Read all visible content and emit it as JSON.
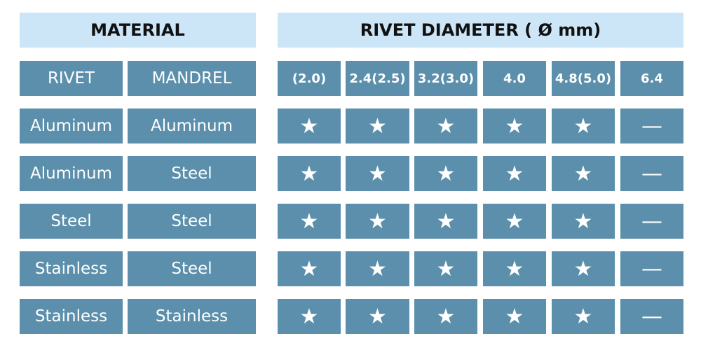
{
  "table": {
    "material_header": "MATERIAL",
    "diameter_header": "RIVET DIAMETER ( Ø mm)",
    "column_headers": [
      "RIVET",
      "MANDREL",
      "(2.0)",
      "2.4(2.5)",
      "3.2(3.0)",
      "4.0",
      "4.8(5.0)",
      "6.4"
    ],
    "rows": [
      [
        "Aluminum",
        "Aluminum",
        "★",
        "★",
        "★",
        "★",
        "★",
        "—"
      ],
      [
        "Aluminum",
        "Steel",
        "★",
        "★",
        "★",
        "★",
        "★",
        "—"
      ],
      [
        "Steel",
        "Steel",
        "★",
        "★",
        "★",
        "★",
        "★",
        "—"
      ],
      [
        "Stainless",
        "Steel",
        "★",
        "★",
        "★",
        "★",
        "★",
        "—"
      ],
      [
        "Stainless",
        "Stainless",
        "★",
        "★",
        "★",
        "★",
        "★",
        "—"
      ]
    ]
  }
}
